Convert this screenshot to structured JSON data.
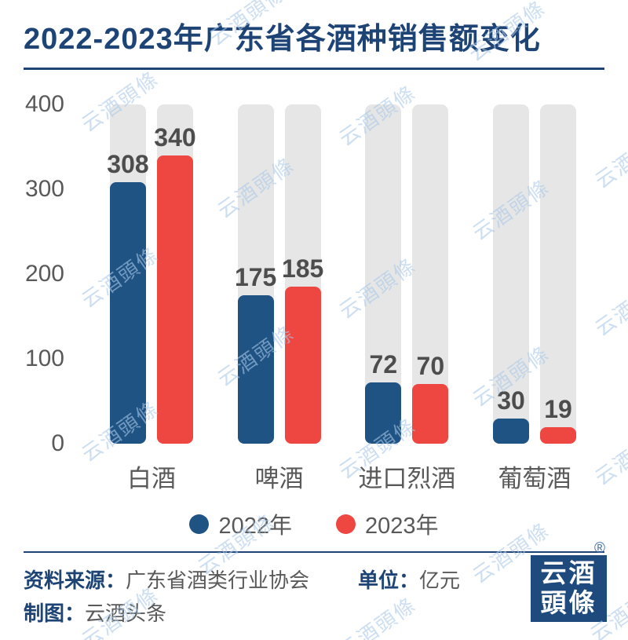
{
  "title": "2022-2023年广东省各酒种销售额变化",
  "watermark_text": "云酒頭條",
  "chart_data": {
    "type": "bar",
    "title": "2022-2023年广东省各酒种销售额变化",
    "categories": [
      "白酒",
      "啤酒",
      "进口烈酒",
      "葡萄酒"
    ],
    "series": [
      {
        "name": "2022年",
        "color": "#1f5384",
        "values": [
          308,
          175,
          72,
          30
        ]
      },
      {
        "name": "2023年",
        "color": "#ee4641",
        "values": [
          340,
          185,
          70,
          19
        ]
      }
    ],
    "ylim": [
      0,
      400
    ],
    "yticks": [
      0,
      100,
      200,
      300,
      400
    ],
    "grid": false,
    "legend_position": "bottom",
    "background_track_color": "#e6e6e6",
    "value_labels_shown": true,
    "unit": "亿元"
  },
  "footer": {
    "source_label": "资料来源：",
    "source_value": "广东省酒类行业协会",
    "unit_label": "单位：",
    "unit_value": "亿元",
    "credit_label": "制图：",
    "credit_value": "云酒头条"
  },
  "logo": {
    "line1": "云酒",
    "line2": "頭條",
    "registered": "®"
  },
  "colors": {
    "accent_blue": "#1e4476",
    "bar_blue": "#1f5384",
    "bar_red": "#ee4641",
    "bar_track_gray": "#e6e6e6",
    "text_gray": "#595959",
    "value_gray": "#4d4d4d",
    "watermark_blue": "#a9c8e8",
    "logo_bg": "#1e4a7d"
  }
}
